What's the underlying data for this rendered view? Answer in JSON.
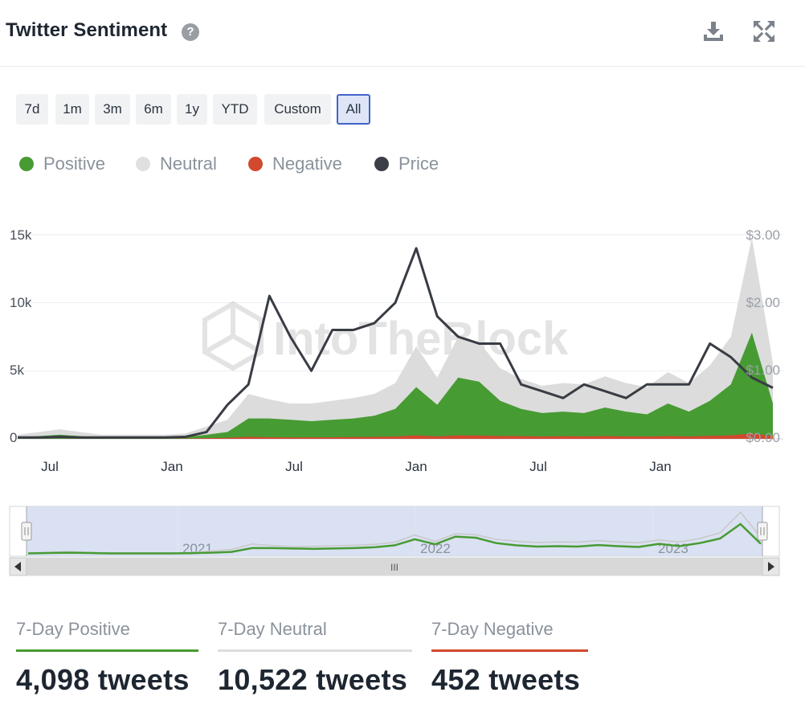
{
  "header": {
    "title": "Twitter Sentiment",
    "help_glyph": "?",
    "download_icon": "download-icon",
    "expand_icon": "expand-icon"
  },
  "ranges": [
    {
      "label": "7d",
      "active": false
    },
    {
      "label": "1m",
      "active": false
    },
    {
      "label": "3m",
      "active": false
    },
    {
      "label": "6m",
      "active": false
    },
    {
      "label": "1y",
      "active": false
    },
    {
      "label": "YTD",
      "active": false
    },
    {
      "label": "Custom",
      "active": false
    },
    {
      "label": "All",
      "active": true
    }
  ],
  "legend": [
    {
      "label": "Positive",
      "color": "#479b33"
    },
    {
      "label": "Neutral",
      "color": "#e0e0e0"
    },
    {
      "label": "Negative",
      "color": "#d1492e"
    },
    {
      "label": "Price",
      "color": "#3b3f46"
    }
  ],
  "watermark": "IntoTheBlock",
  "chart_data": {
    "type": "area",
    "y_left": {
      "range": [
        0,
        15000
      ],
      "ticks": [
        "0",
        "5k",
        "10k",
        "15k"
      ]
    },
    "y_right": {
      "range": [
        0,
        3.0
      ],
      "ticks": [
        "$0.00",
        "$1.00",
        "$2.00",
        "$3.00"
      ]
    },
    "x_ticks": [
      "Jul",
      "Jan",
      "Jul",
      "Jan",
      "Jul",
      "Jan"
    ],
    "x": [
      "2020-05",
      "2020-06",
      "2020-07",
      "2020-08",
      "2020-09",
      "2020-10",
      "2020-11",
      "2020-12",
      "2021-01",
      "2021-02",
      "2021-03",
      "2021-04",
      "2021-05",
      "2021-06",
      "2021-07",
      "2021-08",
      "2021-09",
      "2021-10",
      "2021-11",
      "2021-12",
      "2022-01",
      "2022-02",
      "2022-03",
      "2022-04",
      "2022-05",
      "2022-06",
      "2022-07",
      "2022-08",
      "2022-09",
      "2022-10",
      "2022-11",
      "2022-12",
      "2023-01",
      "2023-02",
      "2023-03",
      "2023-04",
      "2023-05"
    ],
    "series": [
      {
        "name": "Positive",
        "values": [
          100,
          200,
          300,
          200,
          100,
          100,
          100,
          100,
          150,
          300,
          500,
          1500,
          1500,
          1400,
          1300,
          1400,
          1500,
          1700,
          2200,
          3800,
          2500,
          4500,
          4200,
          2800,
          2200,
          1900,
          2000,
          1900,
          2300,
          2000,
          1800,
          2600,
          2000,
          2800,
          4000,
          7800,
          2600
        ]
      },
      {
        "name": "Neutral",
        "values": [
          200,
          300,
          400,
          300,
          200,
          200,
          200,
          200,
          250,
          600,
          900,
          1800,
          1400,
          1200,
          1300,
          1400,
          1500,
          1600,
          1900,
          3000,
          2000,
          3000,
          2900,
          2400,
          2200,
          2000,
          2100,
          2100,
          2300,
          2100,
          2000,
          2300,
          2100,
          2600,
          3500,
          7000,
          3000
        ]
      },
      {
        "name": "Negative",
        "values": [
          10,
          10,
          10,
          10,
          10,
          10,
          10,
          10,
          20,
          60,
          80,
          150,
          120,
          100,
          110,
          120,
          130,
          140,
          170,
          260,
          180,
          260,
          240,
          210,
          200,
          180,
          190,
          180,
          200,
          180,
          170,
          200,
          180,
          220,
          260,
          400,
          200
        ]
      },
      {
        "name": "Price",
        "values": [
          0.02,
          0.02,
          0.03,
          0.02,
          0.02,
          0.02,
          0.02,
          0.02,
          0.03,
          0.1,
          0.5,
          0.8,
          2.1,
          1.5,
          1.0,
          1.6,
          1.6,
          1.7,
          2.0,
          2.8,
          1.8,
          1.5,
          1.4,
          1.4,
          0.8,
          0.7,
          0.6,
          0.8,
          0.7,
          0.6,
          0.8,
          0.8,
          0.8,
          1.4,
          1.2,
          0.9,
          0.75
        ]
      }
    ]
  },
  "navigator": {
    "year_labels": [
      "2021",
      "2022",
      "2023"
    ],
    "handle_glyph": "III"
  },
  "stats": [
    {
      "label": "7-Day Positive",
      "value": "4,098 tweets",
      "color": "#479b33"
    },
    {
      "label": "7-Day Neutral",
      "value": "10,522 tweets",
      "color": "#dddddd"
    },
    {
      "label": "7-Day Negative",
      "value": "452 tweets",
      "color": "#d1492e"
    }
  ]
}
